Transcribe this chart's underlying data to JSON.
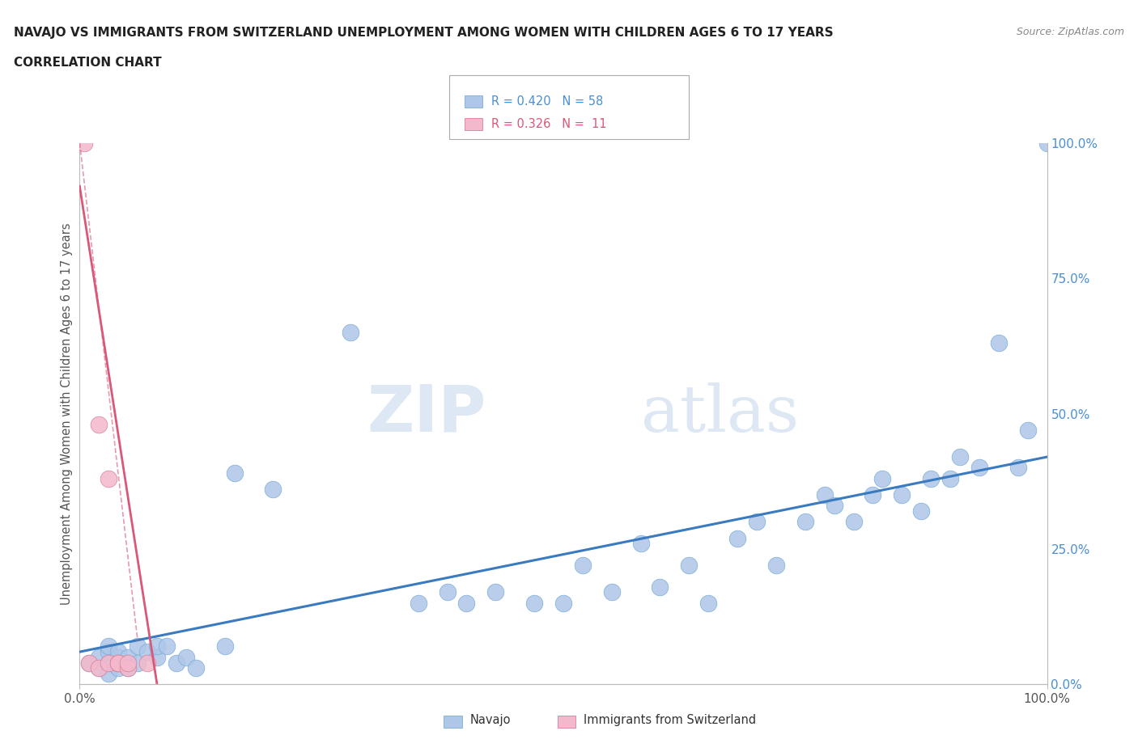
{
  "title_line1": "NAVAJO VS IMMIGRANTS FROM SWITZERLAND UNEMPLOYMENT AMONG WOMEN WITH CHILDREN AGES 6 TO 17 YEARS",
  "title_line2": "CORRELATION CHART",
  "source_text": "Source: ZipAtlas.com",
  "ylabel": "Unemployment Among Women with Children Ages 6 to 17 years",
  "watermark_zip": "ZIP",
  "watermark_atlas": "atlas",
  "xmin": 0.0,
  "xmax": 1.0,
  "ymin": 0.0,
  "ymax": 1.0,
  "ytick_labels": [
    "0.0%",
    "25.0%",
    "50.0%",
    "75.0%",
    "100.0%"
  ],
  "ytick_positions": [
    0.0,
    0.25,
    0.5,
    0.75,
    1.0
  ],
  "navajo_R": 0.42,
  "navajo_N": 58,
  "swiss_R": 0.326,
  "swiss_N": 11,
  "navajo_color": "#aec6e8",
  "swiss_color": "#f4b8cc",
  "trend_navajo_color": "#3a7abf",
  "trend_swiss_color": "#d9587a",
  "background_color": "#ffffff",
  "grid_color": "#cccccc",
  "navajo_x": [
    0.01,
    0.02,
    0.02,
    0.03,
    0.03,
    0.03,
    0.03,
    0.04,
    0.04,
    0.04,
    0.04,
    0.05,
    0.05,
    0.05,
    0.06,
    0.06,
    0.07,
    0.08,
    0.08,
    0.09,
    0.1,
    0.11,
    0.12,
    0.15,
    0.16,
    0.2,
    0.28,
    0.35,
    0.38,
    0.4,
    0.43,
    0.47,
    0.5,
    0.52,
    0.55,
    0.58,
    0.6,
    0.63,
    0.65,
    0.68,
    0.7,
    0.72,
    0.75,
    0.77,
    0.78,
    0.8,
    0.82,
    0.83,
    0.85,
    0.87,
    0.88,
    0.9,
    0.91,
    0.93,
    0.95,
    0.97,
    0.98,
    1.0
  ],
  "navajo_y": [
    0.04,
    0.03,
    0.05,
    0.02,
    0.04,
    0.06,
    0.07,
    0.03,
    0.05,
    0.04,
    0.06,
    0.03,
    0.04,
    0.05,
    0.04,
    0.07,
    0.06,
    0.05,
    0.07,
    0.07,
    0.04,
    0.05,
    0.03,
    0.07,
    0.39,
    0.36,
    0.65,
    0.15,
    0.17,
    0.15,
    0.17,
    0.15,
    0.15,
    0.22,
    0.17,
    0.26,
    0.18,
    0.22,
    0.15,
    0.27,
    0.3,
    0.22,
    0.3,
    0.35,
    0.33,
    0.3,
    0.35,
    0.38,
    0.35,
    0.32,
    0.38,
    0.38,
    0.42,
    0.4,
    0.63,
    0.4,
    0.47,
    1.0
  ],
  "swiss_x": [
    0.005,
    0.01,
    0.02,
    0.02,
    0.03,
    0.03,
    0.04,
    0.04,
    0.05,
    0.05,
    0.07
  ],
  "swiss_y": [
    1.0,
    0.04,
    0.48,
    0.03,
    0.38,
    0.04,
    0.04,
    0.04,
    0.03,
    0.04,
    0.04
  ]
}
